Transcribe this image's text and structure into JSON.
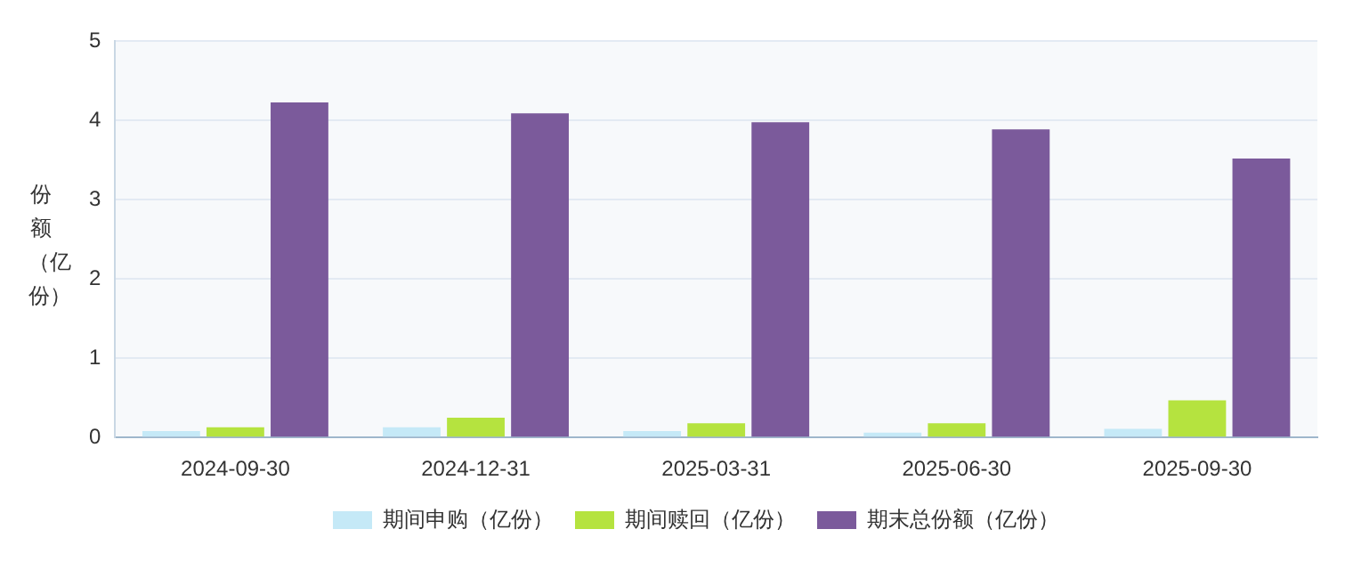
{
  "chart_data": {
    "type": "bar",
    "ylabel": "份额（亿份）",
    "categories": [
      "2024-09-30",
      "2024-12-31",
      "2025-03-31",
      "2025-06-30",
      "2025-09-30"
    ],
    "series": [
      {
        "name": "期间申购（亿份）",
        "color": "#c5e9f7",
        "values": [
          0.08,
          0.13,
          0.08,
          0.06,
          0.11
        ]
      },
      {
        "name": "期间赎回（亿份）",
        "color": "#b5e33f",
        "values": [
          0.13,
          0.25,
          0.18,
          0.18,
          0.47
        ]
      },
      {
        "name": "期末总份额（亿份）",
        "color": "#7b5a9b",
        "values": [
          4.23,
          4.09,
          3.98,
          3.89,
          3.52
        ]
      }
    ],
    "ylim": [
      0,
      5
    ],
    "yticks": [
      0,
      1,
      2,
      3,
      4,
      5
    ],
    "grid": "y",
    "legend": "bottom"
  }
}
